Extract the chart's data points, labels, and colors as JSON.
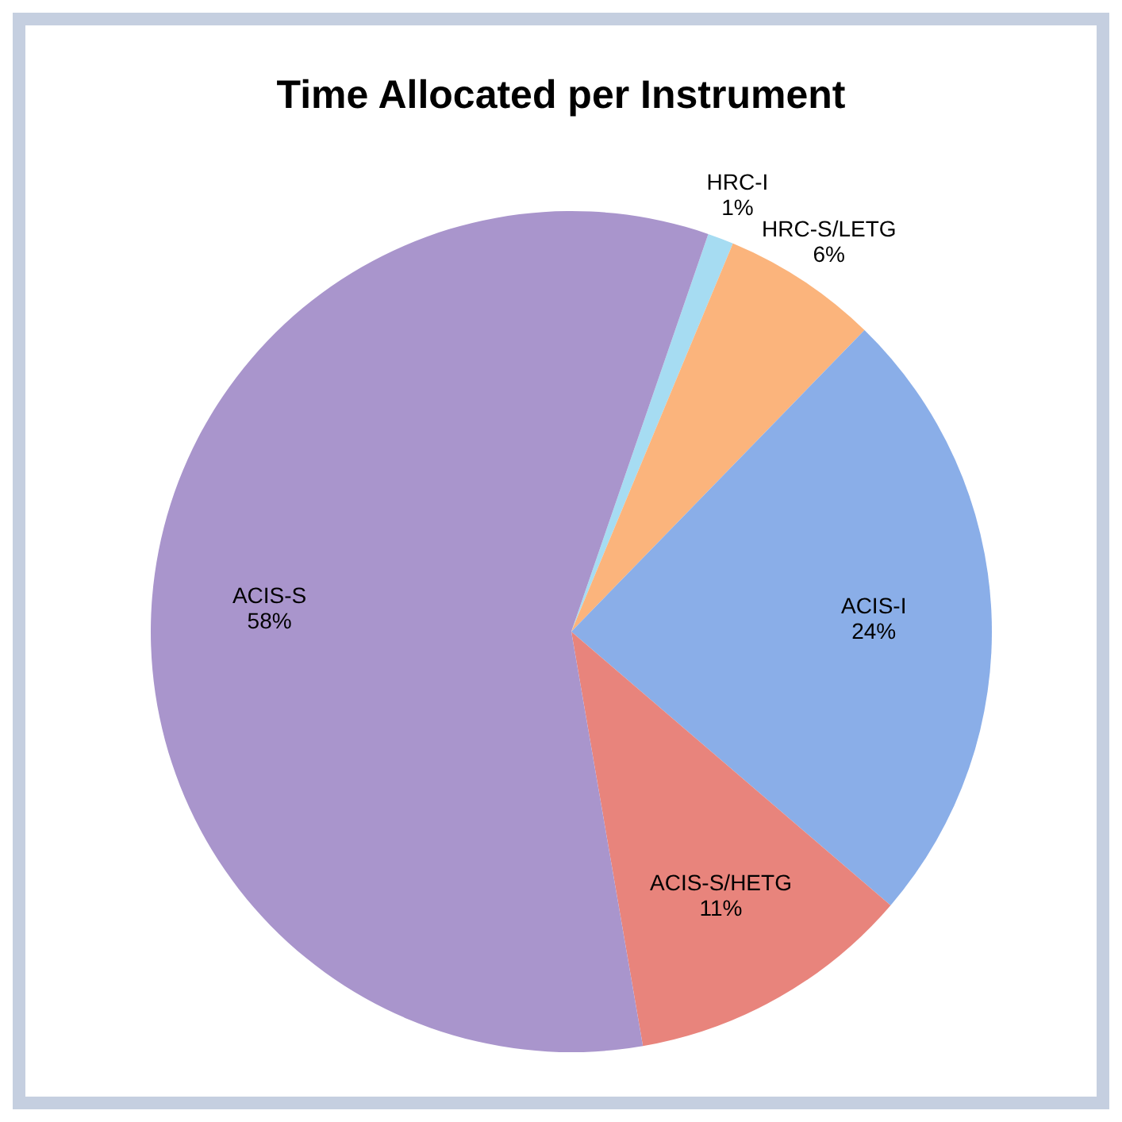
{
  "chart_data": {
    "type": "pie",
    "title": "Time Allocated per Instrument",
    "categories": [
      "HRC-I",
      "HRC-S/LETG",
      "ACIS-I",
      "ACIS-S/HETG",
      "ACIS-S"
    ],
    "values": [
      1,
      6,
      24,
      11,
      58
    ],
    "value_labels": [
      "1%",
      "6%",
      "24%",
      "11%",
      "58%"
    ],
    "colors": [
      "#a6dcf2",
      "#fbb47c",
      "#8aaee8",
      "#e8847c",
      "#a995cc"
    ],
    "legend": false
  }
}
